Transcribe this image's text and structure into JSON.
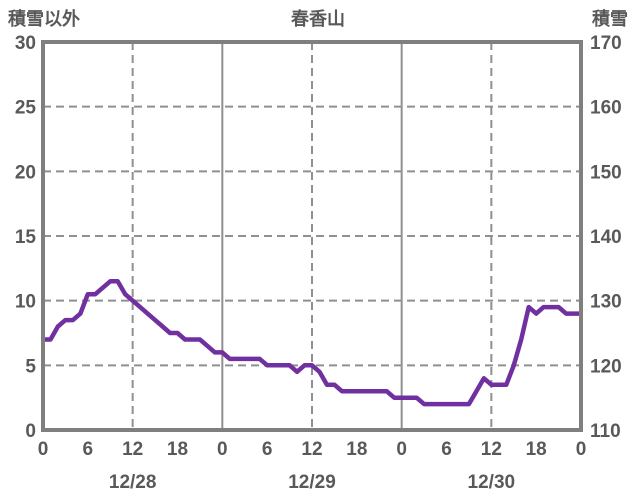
{
  "header": {
    "left_axis_title": "積雪以外",
    "chart_title": "春香山",
    "right_axis_title": "積雪"
  },
  "colors": {
    "line": "#7030a0",
    "frame": "#7f7f7f",
    "grid": "#909090",
    "text": "#595959",
    "background": "#ffffff"
  },
  "chart_data": {
    "type": "line",
    "title": "春香山",
    "left_axis": {
      "title": "積雪以外",
      "min": 0,
      "max": 30,
      "ticks": [
        30,
        25,
        20,
        15,
        10,
        5,
        0
      ]
    },
    "right_axis": {
      "title": "積雪",
      "min": 110,
      "max": 170,
      "ticks": [
        170,
        160,
        150,
        140,
        130,
        120,
        110
      ]
    },
    "x_axis": {
      "hours_span": 72,
      "tick_hours": [
        0,
        6,
        12,
        18,
        24,
        30,
        36,
        42,
        48,
        54,
        60,
        66,
        72
      ],
      "tick_labels": [
        "0",
        "6",
        "12",
        "18",
        "0",
        "6",
        "12",
        "18",
        "0",
        "6",
        "12",
        "18",
        "0"
      ],
      "dates": [
        {
          "label": "12/28",
          "center_hour": 12
        },
        {
          "label": "12/29",
          "center_hour": 36
        },
        {
          "label": "12/30",
          "center_hour": 60
        }
      ]
    },
    "grid": {
      "horizontal_dashed_left_values": [
        25,
        20,
        15,
        10,
        5
      ],
      "vertical_dashed_hours": [
        12,
        36,
        60
      ],
      "vertical_solid_hours": [
        24,
        48
      ]
    },
    "series": [
      {
        "name": "積雪",
        "axis": "right",
        "unit": "cm",
        "color": "#7030a0",
        "x_hours_start": 0,
        "x_hours_step": 1,
        "values_cm": [
          124,
          124,
          126,
          127,
          127,
          128,
          131,
          131,
          132,
          133,
          133,
          131,
          130,
          129,
          128,
          127,
          126,
          125,
          125,
          124,
          124,
          124,
          123,
          122,
          122,
          121,
          121,
          121,
          121,
          121,
          120,
          120,
          120,
          120,
          119,
          120,
          120,
          119,
          117,
          117,
          116,
          116,
          116,
          116,
          116,
          116,
          116,
          115,
          115,
          115,
          115,
          114,
          114,
          114,
          114,
          114,
          114,
          114,
          116,
          118,
          117,
          117,
          117,
          120,
          124,
          129,
          128,
          129,
          129,
          129,
          128,
          128,
          128
        ]
      }
    ],
    "legend": "none"
  }
}
